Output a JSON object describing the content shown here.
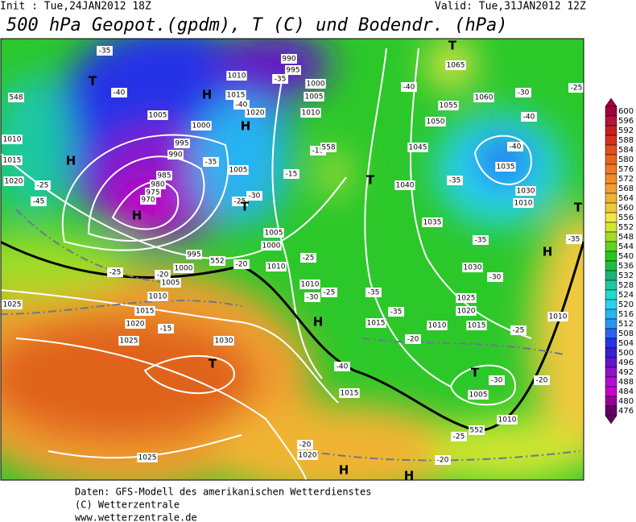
{
  "header": {
    "init": "Init : Tue,24JAN2012 18Z",
    "valid": "Valid: Tue,31JAN2012 12Z",
    "title": "500 hPa Geopot.(gpdm), T (C) und Bodendr. (hPa)"
  },
  "map": {
    "labels": [
      "1010",
      "1015",
      "1020",
      "1005",
      "1000",
      "995",
      "990",
      "985",
      "980",
      "975",
      "970",
      "995",
      "1000",
      "1005",
      "1010",
      "1015",
      "1020",
      "1025",
      "1030",
      "1025",
      "1025",
      "1020",
      "1015",
      "1015",
      "1010",
      "1005",
      "1000",
      "1010",
      "1005",
      "1010",
      "1015",
      "1020",
      "995",
      "1000",
      "1005",
      "1010",
      "990",
      "1065",
      "1060",
      "1055",
      "1050",
      "1045",
      "1040",
      "1035",
      "1030",
      "1025",
      "1020",
      "1015",
      "1010",
      "1005",
      "1010",
      "1010",
      "1030",
      "1035",
      "1010",
      "-35",
      "-40",
      "-35",
      "-30",
      "-25",
      "-20",
      "-25",
      "-20",
      "-15",
      "-15",
      "-15",
      "-25",
      "-30",
      "-25",
      "-35",
      "-35",
      "-20",
      "-30",
      "-35",
      "-35",
      "-40",
      "-40",
      "-30",
      "-40",
      "-35",
      "-40",
      "-35",
      "-25",
      "-20",
      "-20",
      "-25",
      "-20",
      "-25",
      "-30",
      "-25",
      "-45",
      "-40",
      "552",
      "558",
      "552",
      "548",
      "T",
      "H",
      "H",
      "H",
      "H",
      "T",
      "T",
      "H",
      "T",
      "T",
      "H",
      "H",
      "H",
      "T",
      "T",
      "H"
    ]
  },
  "colorbar": {
    "values": [
      600,
      596,
      592,
      588,
      584,
      580,
      576,
      572,
      568,
      564,
      560,
      556,
      552,
      548,
      544,
      540,
      536,
      532,
      528,
      524,
      520,
      516,
      512,
      508,
      504,
      500,
      496,
      492,
      488,
      484,
      480,
      476
    ],
    "colors": [
      "#a0003c",
      "#b4143c",
      "#c81e1e",
      "#d7301f",
      "#e0501e",
      "#e8641e",
      "#f07828",
      "#f08c28",
      "#f0a032",
      "#f0b432",
      "#f0c83c",
      "#f0e646",
      "#d2e632",
      "#a0dc28",
      "#64d21e",
      "#28c81e",
      "#1ebe46",
      "#1eb478",
      "#1ec8a0",
      "#1edcc8",
      "#28d2f0",
      "#28b4f0",
      "#2896f0",
      "#2864f0",
      "#2832e6",
      "#3c1ed2",
      "#6414c8",
      "#8c14c8",
      "#b40adc",
      "#c800c8",
      "#960096",
      "#640064"
    ]
  },
  "footer": {
    "lines": [
      "Daten: GFS-Modell des amerikanischen Wetterdienstes",
      "(C) Wetterzentrale",
      "www.wetterzentrale.de"
    ]
  }
}
